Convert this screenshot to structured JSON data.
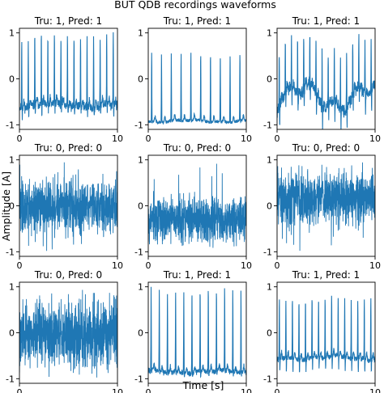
{
  "title": "BUT QDB recordings waveforms",
  "xlabel": "Time [s]",
  "ylabel": "Amplitude [A]",
  "colors": {
    "line": "#1f77b4",
    "axes": "#000000"
  },
  "chart_data": {
    "type": "line",
    "grid": false,
    "xlim": [
      0,
      10
    ],
    "ylim": [
      -1.1,
      1.1
    ],
    "xticks": [
      0,
      10
    ],
    "yticks": [
      -1,
      0,
      1
    ],
    "panels": [
      {
        "row": 1,
        "col": 1,
        "title": "Tru: 1, Pred: 1",
        "kind": "ecg",
        "beats": 15,
        "base": -0.58,
        "peak": 0.92,
        "trough": -0.9,
        "noise": 0.09,
        "wander": 0.04,
        "seed": 11
      },
      {
        "row": 1,
        "col": 2,
        "title": "Tru: 1, Pred: 1",
        "kind": "ecg",
        "beats": 10,
        "base": -0.92,
        "peak": 0.55,
        "trough": -0.97,
        "noise": 0.03,
        "wander": 0.02,
        "seed": 23
      },
      {
        "row": 1,
        "col": 3,
        "title": "Tru: 1, Pred: 1",
        "kind": "ecg",
        "beats": 16,
        "base": -0.42,
        "peak": 0.75,
        "trough": -0.95,
        "noise": 0.12,
        "wander": 0.22,
        "seed": 37
      },
      {
        "row": 2,
        "col": 1,
        "title": "Tru: 0, Pred: 0",
        "kind": "noise",
        "base": -0.02,
        "amp": 0.32,
        "spike_top": 0.95,
        "spike_bottom": -0.98,
        "seed": 41
      },
      {
        "row": 2,
        "col": 2,
        "title": "Tru: 0, Pred: 0",
        "kind": "noise",
        "base": -0.28,
        "amp": 0.3,
        "spike_top": 0.95,
        "spike_bottom": -0.9,
        "seed": 53
      },
      {
        "row": 2,
        "col": 3,
        "title": "Tru: 0, Pred: 0",
        "kind": "noise",
        "base": 0.18,
        "amp": 0.33,
        "spike_top": 0.95,
        "spike_bottom": -0.98,
        "seed": 67
      },
      {
        "row": 3,
        "col": 1,
        "title": "Tru: 0, Pred: 0",
        "kind": "noise",
        "base": -0.02,
        "amp": 0.42,
        "spike_top": 0.95,
        "spike_bottom": -0.98,
        "seed": 79
      },
      {
        "row": 3,
        "col": 2,
        "title": "Tru: 1, Pred: 1",
        "kind": "ecg",
        "beats": 12,
        "base": -0.85,
        "peak": 0.95,
        "trough": -1.0,
        "noise": 0.05,
        "wander": 0.03,
        "seed": 83
      },
      {
        "row": 3,
        "col": 3,
        "title": "Tru: 1, Pred: 1",
        "kind": "ecg",
        "beats": 15,
        "base": -0.55,
        "peak": 0.75,
        "trough": -0.98,
        "noise": 0.05,
        "wander": 0.03,
        "seed": 97
      }
    ]
  }
}
